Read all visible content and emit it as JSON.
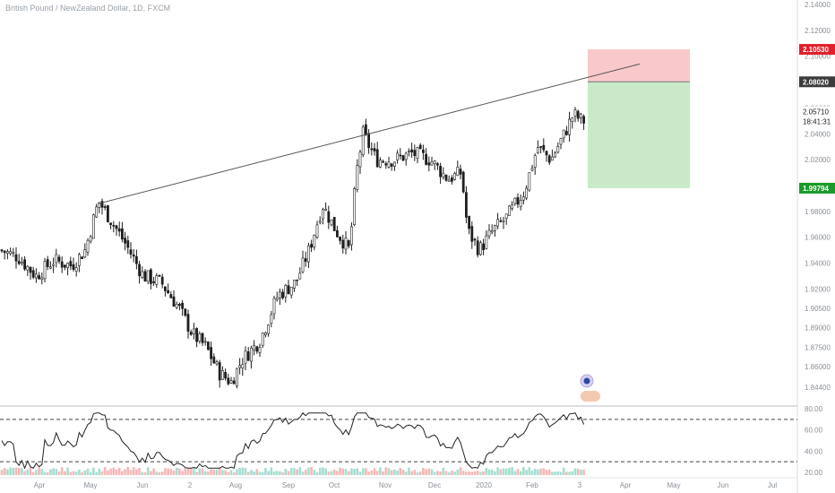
{
  "header": {
    "title": "British Pound / NewZealand Dollar, 1D, FXCM"
  },
  "chart_data": {
    "type": "candlestick",
    "symbol": "GBPNZD",
    "timeframe": "1D",
    "price_axis": {
      "ticks": [
        "2.14000",
        "2.12000",
        "2.10000",
        "2.08000",
        "2.06000",
        "2.04000",
        "2.02000",
        "2.00000",
        "1.98000",
        "1.96000",
        "1.94000",
        "1.92000",
        "1.90500",
        "1.89000",
        "1.87500",
        "1.86000",
        "1.84400"
      ],
      "range": [
        1.838,
        2.146
      ]
    },
    "time_axis": {
      "ticks": [
        "Apr",
        "May",
        "Jun",
        "2",
        "Aug",
        "Sep",
        "Oct",
        "Nov",
        "Dec",
        "2020",
        "Feb",
        "3",
        "Apr",
        "May",
        "Jun",
        "Jul"
      ]
    },
    "price_labels": {
      "stop": "2.10530",
      "entry": "2.08020",
      "current": "2.05710",
      "countdown": "18:41:31",
      "target": "1.99794"
    },
    "trendline": {
      "start": [
        1.986
      ],
      "end": [
        2.094
      ]
    },
    "position": {
      "type": "short",
      "entry": 2.0802,
      "stop": 2.1053,
      "target": 1.99794
    },
    "rsi": {
      "ticks": [
        "80.00",
        "60.00",
        "40.00",
        "20.00"
      ],
      "upper": 70,
      "lower": 30,
      "range": [
        17,
        83
      ]
    },
    "colors": {
      "up": "#1e1e1e",
      "down": "#1e1e1e",
      "stop_zone": "#f9c9c9",
      "target_zone": "#c9eac9",
      "stop_label": "#e0202a",
      "target_label": "#1a9a2a",
      "entry_label": "#3c3c3c",
      "rsi_line": "#222222"
    }
  }
}
